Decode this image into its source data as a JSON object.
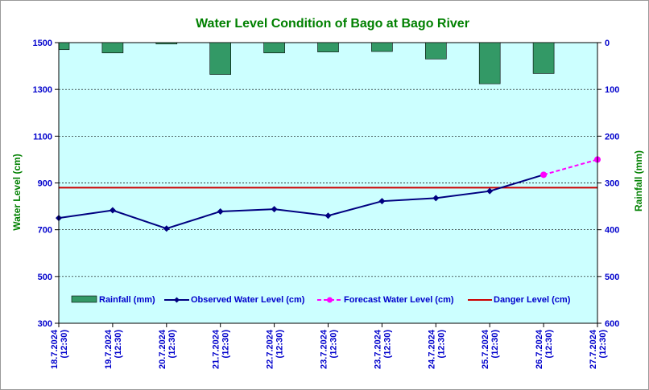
{
  "chart_data": {
    "type": "line",
    "title": "Water Level Condition of Bago at Bago River",
    "left_axis": {
      "label": "Water Level (cm)",
      "range": [
        300,
        1500
      ],
      "ticks": [
        300,
        500,
        700,
        900,
        1100,
        1300,
        1500
      ]
    },
    "right_axis": {
      "label": "Rainfall (mm)",
      "range": [
        0,
        600
      ],
      "inverted": true,
      "ticks": [
        0,
        100,
        200,
        300,
        400,
        500,
        600
      ]
    },
    "grid": "horizontal",
    "legend_placement": "bottom-inside",
    "categories": [
      "18.7.2024 (12:30)",
      "19.7.2024 (12:30)",
      "20.7.2024 (12:30)",
      "21.7.2024 (12:30)",
      "22.7.2024 (12:30)",
      "23.7.2024 (12:30)",
      "23.7.2024 (12:30)",
      "24.7.2024 (12:30)",
      "25.7.2024 (12:30)",
      "26.7.2024 (12:30)",
      "27.7.2024 (12:30)"
    ],
    "series": [
      {
        "name": "Rainfall (mm)",
        "type": "bar",
        "axis": "right",
        "color": "#339966",
        "values": [
          15,
          22,
          3,
          68,
          22,
          20,
          19,
          35,
          88,
          66,
          null
        ]
      },
      {
        "name": "Observed Water Level (cm)",
        "type": "line",
        "axis": "left",
        "color": "#000080",
        "marker": "diamond",
        "values": [
          750,
          783,
          705,
          778,
          788,
          760,
          822,
          835,
          865,
          935,
          null
        ]
      },
      {
        "name": "Forecast Water Level (cm)",
        "type": "line",
        "axis": "left",
        "color": "#ff00ff",
        "dashed": true,
        "marker": "circle",
        "values": [
          null,
          null,
          null,
          null,
          null,
          null,
          null,
          null,
          null,
          935,
          1000
        ]
      },
      {
        "name": "Danger Level (cm)",
        "type": "line",
        "axis": "left",
        "color": "#cc0000",
        "constant": 880
      }
    ]
  }
}
